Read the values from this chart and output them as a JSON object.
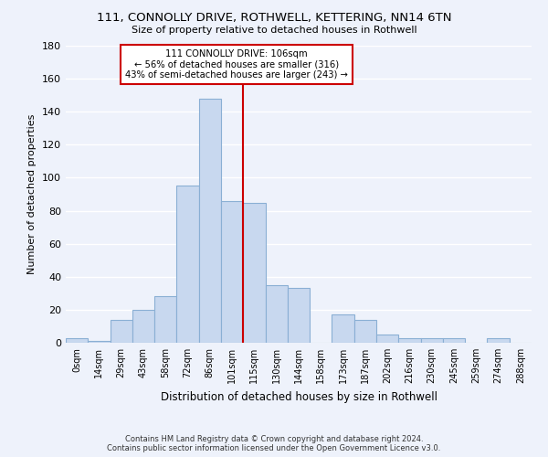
{
  "title_line1": "111, CONNOLLY DRIVE, ROTHWELL, KETTERING, NN14 6TN",
  "title_line2": "Size of property relative to detached houses in Rothwell",
  "xlabel": "Distribution of detached houses by size in Rothwell",
  "ylabel": "Number of detached properties",
  "bar_labels": [
    "0sqm",
    "14sqm",
    "29sqm",
    "43sqm",
    "58sqm",
    "72sqm",
    "86sqm",
    "101sqm",
    "115sqm",
    "130sqm",
    "144sqm",
    "158sqm",
    "173sqm",
    "187sqm",
    "202sqm",
    "216sqm",
    "230sqm",
    "245sqm",
    "259sqm",
    "274sqm",
    "288sqm"
  ],
  "bar_values": [
    3,
    1,
    14,
    20,
    28,
    95,
    148,
    86,
    85,
    35,
    33,
    0,
    17,
    14,
    5,
    3,
    3,
    3,
    0,
    3,
    0
  ],
  "bar_color": "#c8d8ef",
  "bar_edge_color": "#8aafd4",
  "property_line_x": 7.5,
  "annotation_title": "111 CONNOLLY DRIVE: 106sqm",
  "annotation_line1": "← 56% of detached houses are smaller (316)",
  "annotation_line2": "43% of semi-detached houses are larger (243) →",
  "annotation_box_color": "#ffffff",
  "annotation_box_edge_color": "#cc0000",
  "line_color": "#cc0000",
  "ylim": [
    0,
    180
  ],
  "yticks": [
    0,
    20,
    40,
    60,
    80,
    100,
    120,
    140,
    160,
    180
  ],
  "footer_line1": "Contains HM Land Registry data © Crown copyright and database right 2024.",
  "footer_line2": "Contains public sector information licensed under the Open Government Licence v3.0.",
  "background_color": "#eef2fb",
  "grid_color": "#ffffff"
}
